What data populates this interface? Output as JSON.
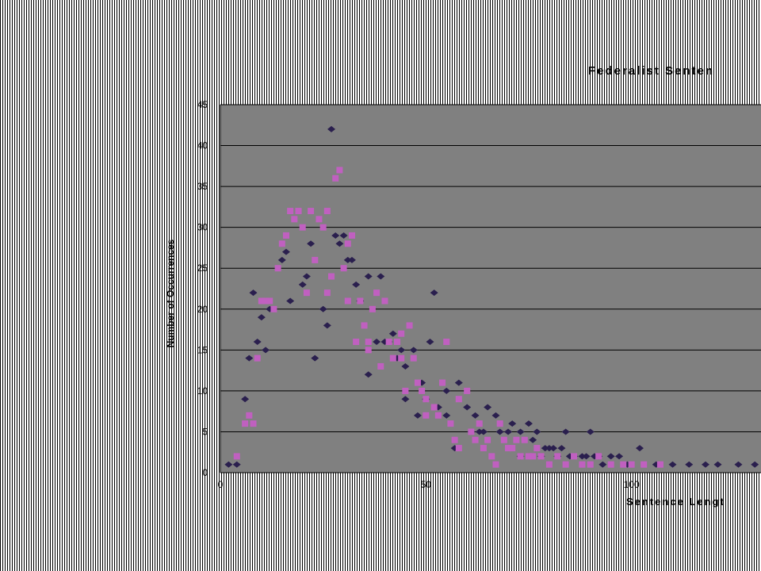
{
  "chart_data": {
    "type": "scatter",
    "title": "Federalist Senten",
    "xlabel": "Sentence Lengt",
    "ylabel": "Number of Occurrences",
    "x_ticks": [
      "0",
      "50",
      "100"
    ],
    "y_ticks": [
      "0",
      "5",
      "10",
      "15",
      "20",
      "25",
      "30",
      "35",
      "40",
      "45"
    ],
    "xlim": [
      0,
      131.5
    ],
    "ylim": [
      0,
      45
    ],
    "grid": true,
    "colors": {
      "plot_background": "#808080",
      "series_dark": "#2a1f4e",
      "series_pink": "#c060c0"
    },
    "series": [
      {
        "marker": "diamond",
        "color": "#2a1f4e",
        "points": [
          [
            2,
            1
          ],
          [
            4,
            1
          ],
          [
            6,
            9
          ],
          [
            7,
            14
          ],
          [
            8,
            22
          ],
          [
            9,
            16
          ],
          [
            10,
            19
          ],
          [
            11,
            15
          ],
          [
            12,
            20
          ],
          [
            15,
            26
          ],
          [
            16,
            27
          ],
          [
            17,
            21
          ],
          [
            20,
            23
          ],
          [
            21,
            24
          ],
          [
            22,
            28
          ],
          [
            23,
            14
          ],
          [
            25,
            20
          ],
          [
            26,
            18
          ],
          [
            27,
            42
          ],
          [
            28,
            29
          ],
          [
            29,
            28
          ],
          [
            30,
            29
          ],
          [
            31,
            26
          ],
          [
            32,
            26
          ],
          [
            33,
            23
          ],
          [
            34,
            21
          ],
          [
            36,
            24
          ],
          [
            36,
            12
          ],
          [
            38,
            16
          ],
          [
            39,
            24
          ],
          [
            40,
            16
          ],
          [
            41,
            16
          ],
          [
            42,
            17
          ],
          [
            43,
            14
          ],
          [
            44,
            15
          ],
          [
            45,
            13
          ],
          [
            45,
            9
          ],
          [
            47,
            15
          ],
          [
            48,
            7
          ],
          [
            49,
            11
          ],
          [
            50,
            9
          ],
          [
            51,
            16
          ],
          [
            52,
            22
          ],
          [
            53,
            8
          ],
          [
            55,
            10
          ],
          [
            55,
            7
          ],
          [
            57,
            3
          ],
          [
            58,
            11
          ],
          [
            60,
            8
          ],
          [
            61,
            5
          ],
          [
            62,
            7
          ],
          [
            63,
            5
          ],
          [
            64,
            5
          ],
          [
            65,
            8
          ],
          [
            67,
            7
          ],
          [
            68,
            5
          ],
          [
            70,
            5
          ],
          [
            71,
            6
          ],
          [
            73,
            2
          ],
          [
            73,
            5
          ],
          [
            75,
            6
          ],
          [
            76,
            4
          ],
          [
            77,
            5
          ],
          [
            78,
            2
          ],
          [
            79,
            3
          ],
          [
            80,
            3
          ],
          [
            81,
            3
          ],
          [
            82,
            2
          ],
          [
            83,
            3
          ],
          [
            84,
            5
          ],
          [
            85,
            2
          ],
          [
            86,
            2
          ],
          [
            88,
            2
          ],
          [
            89,
            2
          ],
          [
            90,
            5
          ],
          [
            91,
            2
          ],
          [
            92,
            2
          ],
          [
            93,
            1
          ],
          [
            95,
            2
          ],
          [
            97,
            2
          ],
          [
            99,
            1
          ],
          [
            102,
            3
          ],
          [
            106,
            1
          ],
          [
            110,
            1
          ],
          [
            114,
            1
          ],
          [
            118,
            1
          ],
          [
            121,
            1
          ],
          [
            126,
            1
          ],
          [
            130,
            1
          ]
        ]
      },
      {
        "marker": "square",
        "color": "#c060c0",
        "points": [
          [
            4,
            2
          ],
          [
            6,
            6
          ],
          [
            7,
            7
          ],
          [
            8,
            6
          ],
          [
            9,
            14
          ],
          [
            10,
            21
          ],
          [
            11,
            21
          ],
          [
            12,
            21
          ],
          [
            13,
            20
          ],
          [
            14,
            25
          ],
          [
            15,
            28
          ],
          [
            16,
            29
          ],
          [
            17,
            32
          ],
          [
            18,
            31
          ],
          [
            19,
            32
          ],
          [
            20,
            30
          ],
          [
            21,
            22
          ],
          [
            22,
            32
          ],
          [
            23,
            26
          ],
          [
            24,
            31
          ],
          [
            25,
            30
          ],
          [
            26,
            22
          ],
          [
            26,
            32
          ],
          [
            27,
            24
          ],
          [
            28,
            36
          ],
          [
            29,
            37
          ],
          [
            30,
            25
          ],
          [
            31,
            28
          ],
          [
            31,
            21
          ],
          [
            32,
            29
          ],
          [
            33,
            16
          ],
          [
            34,
            21
          ],
          [
            35,
            18
          ],
          [
            36,
            16
          ],
          [
            36,
            15
          ],
          [
            37,
            20
          ],
          [
            38,
            22
          ],
          [
            39,
            13
          ],
          [
            40,
            21
          ],
          [
            41,
            16
          ],
          [
            42,
            14
          ],
          [
            43,
            16
          ],
          [
            44,
            17
          ],
          [
            44,
            14
          ],
          [
            45,
            10
          ],
          [
            46,
            18
          ],
          [
            47,
            14
          ],
          [
            48,
            11
          ],
          [
            49,
            10
          ],
          [
            50,
            9
          ],
          [
            50,
            7
          ],
          [
            52,
            8
          ],
          [
            53,
            7
          ],
          [
            54,
            11
          ],
          [
            55,
            16
          ],
          [
            56,
            6
          ],
          [
            57,
            4
          ],
          [
            58,
            9
          ],
          [
            58,
            3
          ],
          [
            60,
            10
          ],
          [
            61,
            5
          ],
          [
            62,
            4
          ],
          [
            63,
            6
          ],
          [
            64,
            3
          ],
          [
            65,
            4
          ],
          [
            66,
            2
          ],
          [
            67,
            1
          ],
          [
            68,
            6
          ],
          [
            69,
            4
          ],
          [
            70,
            3
          ],
          [
            71,
            3
          ],
          [
            72,
            4
          ],
          [
            73,
            2
          ],
          [
            74,
            4
          ],
          [
            75,
            2
          ],
          [
            76,
            2
          ],
          [
            77,
            3
          ],
          [
            78,
            2
          ],
          [
            80,
            1
          ],
          [
            82,
            2
          ],
          [
            84,
            1
          ],
          [
            86,
            2
          ],
          [
            88,
            1
          ],
          [
            90,
            1
          ],
          [
            92,
            2
          ],
          [
            95,
            1
          ],
          [
            98,
            1
          ],
          [
            100,
            1
          ],
          [
            103,
            1
          ],
          [
            107,
            1
          ]
        ]
      }
    ]
  }
}
